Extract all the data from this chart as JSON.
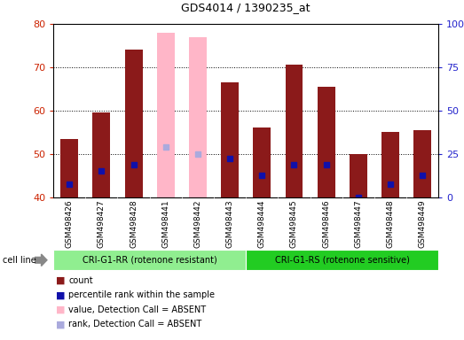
{
  "title": "GDS4014 / 1390235_at",
  "samples": [
    "GSM498426",
    "GSM498427",
    "GSM498428",
    "GSM498441",
    "GSM498442",
    "GSM498443",
    "GSM498444",
    "GSM498445",
    "GSM498446",
    "GSM498447",
    "GSM498448",
    "GSM498449"
  ],
  "count_values": [
    53.5,
    59.5,
    74.0,
    78.0,
    77.0,
    66.5,
    56.0,
    70.5,
    65.5,
    50.0,
    55.0,
    55.5
  ],
  "rank_values": [
    43.0,
    46.0,
    47.5,
    51.5,
    50.0,
    49.0,
    45.0,
    47.5,
    47.5,
    40.0,
    43.0,
    45.0
  ],
  "absent_count": [
    false,
    false,
    false,
    true,
    true,
    false,
    false,
    false,
    false,
    false,
    false,
    false
  ],
  "absent_rank": [
    false,
    false,
    false,
    true,
    true,
    false,
    false,
    false,
    false,
    false,
    false,
    false
  ],
  "group1_label": "CRI-G1-RR (rotenone resistant)",
  "group2_label": "CRI-G1-RS (rotenone sensitive)",
  "group1_count": 6,
  "group2_count": 6,
  "ylim_left": [
    40,
    80
  ],
  "ylim_right": [
    0,
    100
  ],
  "bar_color_present": "#8B1A1A",
  "bar_color_absent": "#FFB6C8",
  "rank_color_present": "#1010AA",
  "rank_color_absent": "#AAAADD",
  "group1_color": "#90EE90",
  "group2_color": "#22CC22",
  "tick_label_color_left": "#CC2200",
  "tick_label_color_right": "#2222CC",
  "background_color": "#FFFFFF",
  "legend_items": [
    "count",
    "percentile rank within the sample",
    "value, Detection Call = ABSENT",
    "rank, Detection Call = ABSENT"
  ],
  "legend_colors": [
    "#8B1A1A",
    "#1010AA",
    "#FFB6C8",
    "#AAAADD"
  ]
}
